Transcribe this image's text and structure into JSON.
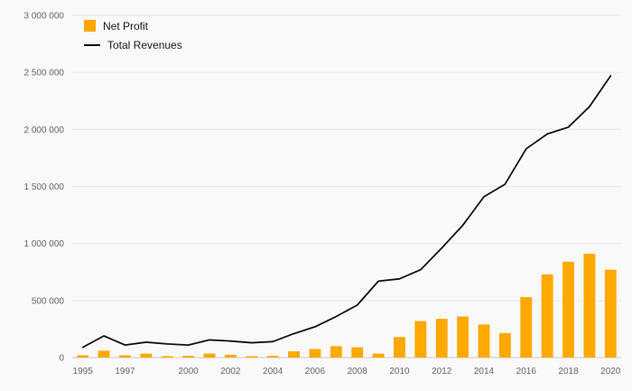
{
  "chart_data": {
    "type": "bar+line",
    "title": "",
    "categories": [
      1995,
      1996,
      1997,
      1998,
      1999,
      2000,
      2001,
      2002,
      2003,
      2004,
      2005,
      2006,
      2007,
      2008,
      2009,
      2010,
      2011,
      2012,
      2013,
      2014,
      2015,
      2016,
      2017,
      2018,
      2019,
      2020
    ],
    "series": [
      {
        "name": "Net Profit",
        "type": "bar",
        "color": "#FFA800",
        "values": [
          20000,
          60000,
          20000,
          35000,
          12000,
          15000,
          35000,
          25000,
          12000,
          15000,
          55000,
          75000,
          100000,
          90000,
          35000,
          180000,
          320000,
          340000,
          360000,
          290000,
          215000,
          530000,
          730000,
          840000,
          910000,
          770000
        ]
      },
      {
        "name": "Total Revenues",
        "type": "line",
        "color": "#111111",
        "values": [
          90000,
          190000,
          110000,
          135000,
          120000,
          110000,
          155000,
          145000,
          130000,
          140000,
          210000,
          270000,
          360000,
          460000,
          670000,
          690000,
          770000,
          960000,
          1160000,
          1410000,
          1520000,
          1830000,
          1960000,
          2020000,
          2200000,
          2470000
        ]
      }
    ],
    "ylim": [
      0,
      3000000
    ],
    "ytick_interval": 500000,
    "ytick_labels": [
      "0",
      "500 000",
      "1 000 000",
      "1 500 000",
      "2 000 000",
      "2 500 000",
      "3 000 000"
    ],
    "xtick_labels": [
      "1995",
      "1997",
      "2000",
      "2002",
      "2004",
      "2006",
      "2008",
      "2010",
      "2012",
      "2014",
      "2016",
      "2018",
      "2020"
    ],
    "grid": true,
    "legend_position": "top-left",
    "background_color": "#f9f9f9",
    "axis_text_color": "#666666",
    "grid_color": "#e7e7e7",
    "zero_line_color": "#cccccc"
  }
}
